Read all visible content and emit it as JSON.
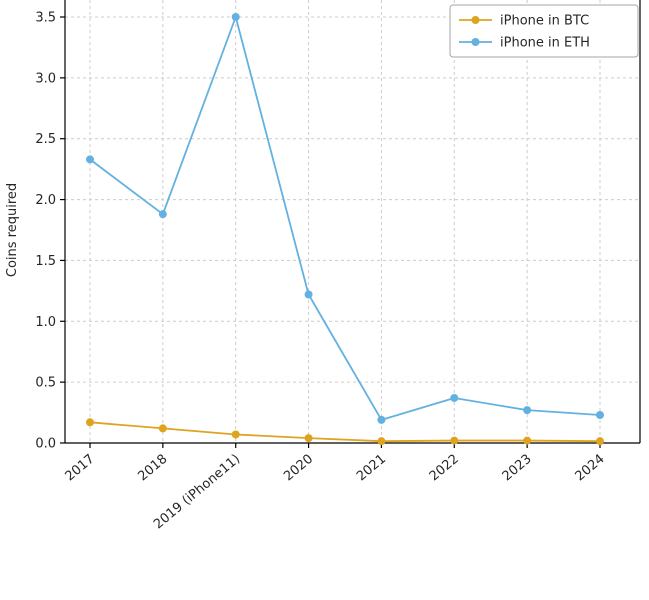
{
  "chart_data": {
    "type": "line",
    "title": "",
    "xlabel": "",
    "ylabel": "Coins required",
    "categories": [
      "2017",
      "2018",
      "2019 (iPhone11)",
      "2020",
      "2021",
      "2022",
      "2023",
      "2024"
    ],
    "series": [
      {
        "name": "iPhone in BTC",
        "color": "#DFA41F",
        "values": [
          0.17,
          0.12,
          0.07,
          0.04,
          0.015,
          0.02,
          0.02,
          0.015
        ]
      },
      {
        "name": "iPhone in ETH",
        "color": "#63B1E0",
        "values": [
          2.33,
          1.88,
          3.5,
          1.22,
          0.19,
          0.37,
          0.27,
          0.23
        ]
      }
    ],
    "ylim": [
      0,
      3.5
    ],
    "yticks": [
      0.0,
      0.5,
      1.0,
      1.5,
      2.0,
      2.5,
      3.0,
      3.5
    ],
    "grid": true,
    "grid_style": "dashed",
    "grid_color": "#cccccc",
    "legend_position": "upper right",
    "axis_color": "#000000",
    "text_color": "#262626"
  }
}
